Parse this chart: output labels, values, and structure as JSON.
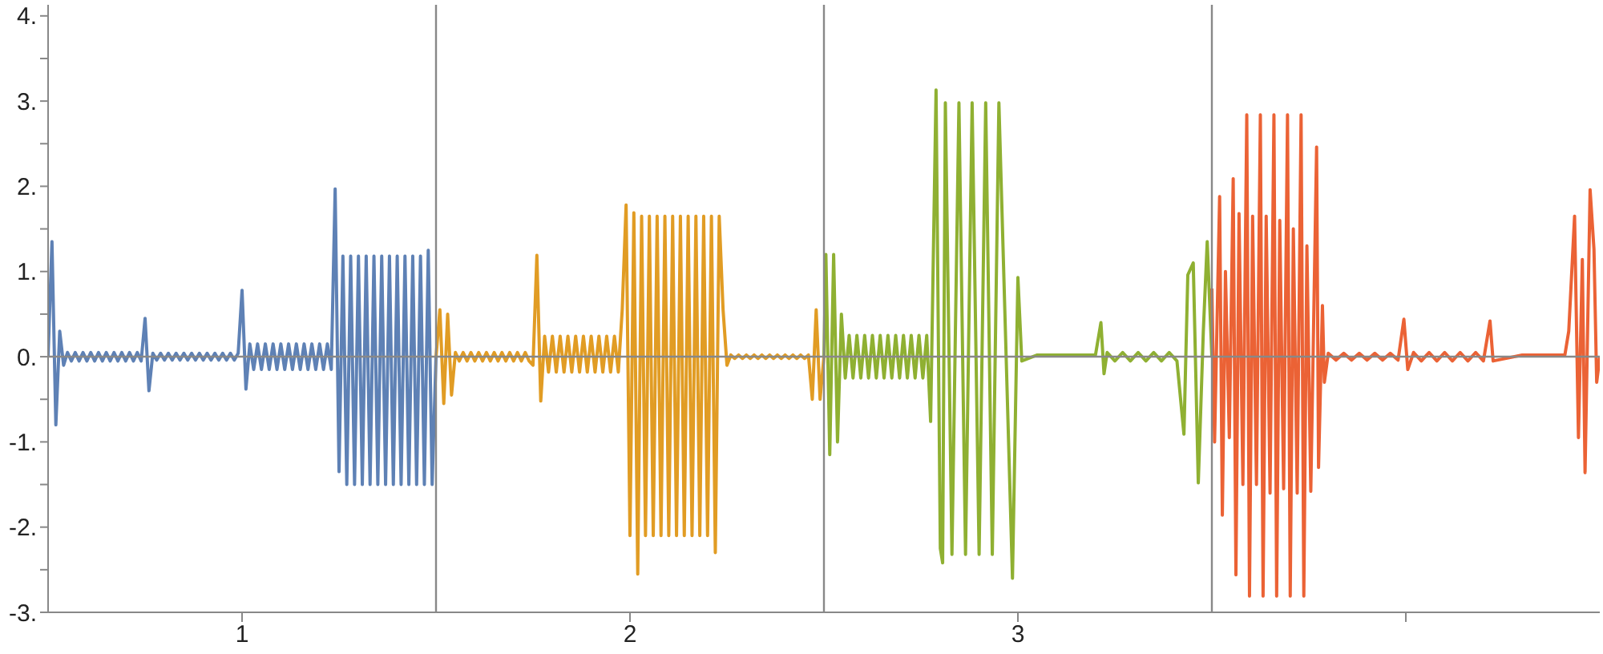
{
  "chart_data": {
    "type": "line",
    "marker": "none",
    "line_style": "solid",
    "xlim": [
      0.5,
      4.5
    ],
    "ylim": [
      -3,
      4.13
    ],
    "xticks": [
      1,
      2,
      3,
      {
        "value": 4,
        "label": null
      }
    ],
    "yticks": [
      {
        "value": -3,
        "label": "-3."
      },
      {
        "value": -2.5,
        "label": null
      },
      {
        "value": -2,
        "label": "-2."
      },
      {
        "value": -1.5,
        "label": null
      },
      {
        "value": -1,
        "label": "-1."
      },
      {
        "value": -0.5,
        "label": null
      },
      {
        "value": 0,
        "label": "0."
      },
      {
        "value": 0.5,
        "label": null
      },
      {
        "value": 1,
        "label": "1."
      },
      {
        "value": 1.5,
        "label": null
      },
      {
        "value": 2,
        "label": "2."
      },
      {
        "value": 2.5,
        "label": null
      },
      {
        "value": 3,
        "label": "3."
      },
      {
        "value": 3.5,
        "label": null
      },
      {
        "value": 4,
        "label": "4."
      }
    ],
    "ref_lines": [
      {
        "axis": "y",
        "value": 0,
        "color": "#888888"
      },
      {
        "axis": "x",
        "value": 1.5,
        "color": "#888888"
      },
      {
        "axis": "x",
        "value": 2.5,
        "color": "#888888"
      },
      {
        "axis": "x",
        "value": 3.5,
        "color": "#888888"
      }
    ],
    "series": [
      {
        "color": "#5e81b5",
        "x": [
          0.5,
          0.51,
          0.52,
          0.53,
          0.54,
          0.55,
          0.56,
          0.57,
          0.58,
          0.59,
          0.6,
          0.61,
          0.62,
          0.63,
          0.64,
          0.65,
          0.66,
          0.67,
          0.68,
          0.69,
          0.7,
          0.71,
          0.72,
          0.73,
          0.74,
          0.75,
          0.76,
          0.77,
          0.78,
          0.79,
          0.8,
          0.81,
          0.82,
          0.83,
          0.84,
          0.85,
          0.86,
          0.87,
          0.88,
          0.89,
          0.9,
          0.91,
          0.92,
          0.93,
          0.94,
          0.95,
          0.96,
          0.97,
          0.98,
          0.99,
          1.0,
          1.01,
          1.02,
          1.03,
          1.04,
          1.05,
          1.06,
          1.07,
          1.08,
          1.09,
          1.1,
          1.11,
          1.12,
          1.13,
          1.14,
          1.15,
          1.16,
          1.17,
          1.18,
          1.19,
          1.2,
          1.21,
          1.22,
          1.23,
          1.24,
          1.25,
          1.26,
          1.27,
          1.28,
          1.29,
          1.3,
          1.31,
          1.32,
          1.33,
          1.34,
          1.35,
          1.36,
          1.37,
          1.38,
          1.39,
          1.4,
          1.41,
          1.42,
          1.43,
          1.44,
          1.45,
          1.46,
          1.47,
          1.48,
          1.49,
          1.5
        ],
        "values": [
          0,
          1.35,
          -0.8,
          0.3,
          -0.1,
          0.05,
          -0.05,
          0.05,
          -0.05,
          0.05,
          -0.05,
          0.05,
          -0.05,
          0.05,
          -0.05,
          0.05,
          -0.05,
          0.05,
          -0.05,
          0.05,
          -0.05,
          0.05,
          -0.05,
          0.05,
          -0.05,
          0.45,
          -0.4,
          0.04,
          -0.04,
          0.04,
          -0.04,
          0.04,
          -0.04,
          0.04,
          -0.04,
          0.04,
          -0.04,
          0.04,
          -0.04,
          0.04,
          -0.04,
          0.04,
          -0.04,
          0.04,
          -0.04,
          0.04,
          -0.04,
          0.04,
          -0.04,
          0.04,
          0.78,
          -0.38,
          0.15,
          -0.15,
          0.15,
          -0.15,
          0.15,
          -0.15,
          0.15,
          -0.15,
          0.15,
          -0.15,
          0.15,
          -0.15,
          0.15,
          -0.15,
          0.15,
          -0.15,
          0.15,
          -0.15,
          0.15,
          -0.15,
          0.15,
          -0.15,
          1.97,
          -1.35,
          1.18,
          -1.5,
          1.18,
          -1.5,
          1.18,
          -1.5,
          1.18,
          -1.5,
          1.18,
          -1.5,
          1.18,
          -1.5,
          1.18,
          -1.5,
          1.18,
          -1.5,
          1.18,
          -1.5,
          1.18,
          -1.5,
          1.18,
          -1.5,
          1.25,
          -1.5,
          0
        ]
      },
      {
        "color": "#e19c24",
        "x": [
          1.5,
          1.51,
          1.52,
          1.53,
          1.54,
          1.55,
          1.56,
          1.57,
          1.58,
          1.59,
          1.6,
          1.61,
          1.62,
          1.63,
          1.64,
          1.65,
          1.66,
          1.67,
          1.68,
          1.69,
          1.7,
          1.71,
          1.72,
          1.73,
          1.74,
          1.75,
          1.76,
          1.77,
          1.78,
          1.79,
          1.8,
          1.81,
          1.82,
          1.83,
          1.84,
          1.85,
          1.86,
          1.87,
          1.88,
          1.89,
          1.9,
          1.91,
          1.92,
          1.93,
          1.94,
          1.95,
          1.96,
          1.97,
          1.98,
          1.99,
          2.0,
          2.01,
          2.02,
          2.03,
          2.04,
          2.05,
          2.06,
          2.07,
          2.08,
          2.09,
          2.1,
          2.11,
          2.12,
          2.13,
          2.14,
          2.15,
          2.16,
          2.17,
          2.18,
          2.19,
          2.2,
          2.21,
          2.22,
          2.23,
          2.24,
          2.25,
          2.26,
          2.27,
          2.28,
          2.29,
          2.3,
          2.31,
          2.32,
          2.33,
          2.34,
          2.35,
          2.36,
          2.37,
          2.38,
          2.39,
          2.4,
          2.41,
          2.42,
          2.43,
          2.44,
          2.45,
          2.46,
          2.47,
          2.48,
          2.49,
          2.5
        ],
        "values": [
          0,
          0.55,
          -0.55,
          0.5,
          -0.45,
          0.05,
          -0.05,
          0.05,
          -0.05,
          0.05,
          -0.05,
          0.05,
          -0.05,
          0.05,
          -0.05,
          0.05,
          -0.05,
          0.05,
          -0.05,
          0.05,
          -0.05,
          0.05,
          -0.05,
          0.05,
          -0.05,
          -0.1,
          1.19,
          -0.52,
          0.24,
          -0.18,
          0.24,
          -0.18,
          0.24,
          -0.18,
          0.24,
          -0.18,
          0.24,
          -0.18,
          0.24,
          -0.18,
          0.24,
          -0.18,
          0.24,
          -0.18,
          0.24,
          -0.18,
          0.24,
          -0.18,
          0.55,
          1.78,
          -2.1,
          1.69,
          -2.55,
          1.65,
          -2.1,
          1.65,
          -2.1,
          1.65,
          -2.1,
          1.65,
          -2.1,
          1.65,
          -2.1,
          1.65,
          -2.1,
          1.65,
          -2.1,
          1.65,
          -2.1,
          1.65,
          -2.1,
          1.65,
          -2.3,
          1.65,
          0.55,
          -0.1,
          0.02,
          -0.02,
          0.02,
          -0.02,
          0.02,
          -0.02,
          0.02,
          -0.02,
          0.02,
          -0.02,
          0.02,
          -0.02,
          0.02,
          -0.02,
          0.02,
          -0.02,
          0.02,
          -0.02,
          0.02,
          -0.02,
          0.02,
          -0.5,
          0.55,
          -0.5,
          0
        ]
      },
      {
        "color": "#8fb032",
        "x": [
          2.5,
          2.505,
          2.515,
          2.525,
          2.535,
          2.545,
          2.555,
          2.565,
          2.575,
          2.585,
          2.595,
          2.605,
          2.615,
          2.625,
          2.635,
          2.645,
          2.655,
          2.665,
          2.675,
          2.685,
          2.695,
          2.705,
          2.715,
          2.725,
          2.735,
          2.745,
          2.755,
          2.765,
          2.775,
          2.789,
          2.8,
          2.806,
          2.813,
          2.83,
          2.848,
          2.865,
          2.882,
          2.9,
          2.917,
          2.934,
          2.951,
          2.986,
          3.0,
          3.01,
          3.05,
          3.2,
          3.214,
          3.222,
          3.23,
          3.25,
          3.27,
          3.29,
          3.31,
          3.33,
          3.35,
          3.37,
          3.39,
          3.41,
          3.428,
          3.438,
          3.452,
          3.465,
          3.478,
          3.488,
          3.5
        ],
        "values": [
          0,
          1.2,
          -1.15,
          1.2,
          -1.0,
          0.5,
          -0.25,
          0.25,
          -0.25,
          0.25,
          -0.25,
          0.25,
          -0.25,
          0.25,
          -0.25,
          0.25,
          -0.25,
          0.25,
          -0.25,
          0.25,
          -0.25,
          0.25,
          -0.25,
          0.25,
          -0.25,
          0.25,
          -0.25,
          0.25,
          -0.76,
          3.13,
          -2.25,
          -2.42,
          2.98,
          -2.32,
          2.98,
          -2.32,
          2.98,
          -2.32,
          2.98,
          -2.32,
          2.98,
          -2.6,
          0.93,
          -0.05,
          0.02,
          0.02,
          0.4,
          -0.2,
          0.05,
          -0.05,
          0.05,
          -0.05,
          0.05,
          -0.05,
          0.05,
          -0.05,
          0.05,
          -0.05,
          -0.91,
          0.96,
          1.1,
          -1.48,
          0.3,
          1.35,
          0
        ]
      },
      {
        "color": "#eb6235",
        "x": [
          3.5,
          3.507,
          3.52,
          3.527,
          3.535,
          3.545,
          3.555,
          3.562,
          3.57,
          3.58,
          3.59,
          3.597,
          3.605,
          3.615,
          3.625,
          3.632,
          3.64,
          3.65,
          3.66,
          3.667,
          3.675,
          3.685,
          3.695,
          3.702,
          3.71,
          3.72,
          3.73,
          3.737,
          3.745,
          3.755,
          3.77,
          3.775,
          3.785,
          3.79,
          3.8,
          3.82,
          3.84,
          3.86,
          3.88,
          3.9,
          3.92,
          3.94,
          3.96,
          3.98,
          3.995,
          4.005,
          4.02,
          4.04,
          4.06,
          4.08,
          4.1,
          4.12,
          4.14,
          4.16,
          4.18,
          4.2,
          4.217,
          4.225,
          4.3,
          4.41,
          4.42,
          4.435,
          4.445,
          4.455,
          4.462,
          4.475,
          4.485,
          4.492,
          4.5
        ],
        "values": [
          0.8,
          -1.0,
          1.88,
          -1.86,
          1.0,
          -0.95,
          2.09,
          -2.56,
          1.68,
          -1.5,
          2.84,
          -2.81,
          1.65,
          -1.5,
          2.84,
          -2.81,
          1.65,
          -1.6,
          2.84,
          -2.81,
          1.6,
          -1.55,
          2.84,
          -2.81,
          1.5,
          -1.6,
          2.84,
          -2.81,
          1.3,
          -1.58,
          2.46,
          -1.3,
          0.6,
          -0.3,
          0.04,
          -0.04,
          0.04,
          -0.04,
          0.04,
          -0.04,
          0.04,
          -0.04,
          0.04,
          -0.04,
          0.44,
          -0.15,
          0.05,
          -0.05,
          0.05,
          -0.05,
          0.05,
          -0.05,
          0.05,
          -0.05,
          0.05,
          -0.05,
          0.42,
          -0.05,
          0.02,
          0.02,
          0.3,
          1.65,
          -0.95,
          1.14,
          -1.36,
          1.96,
          1.26,
          -0.3,
          0
        ]
      }
    ]
  }
}
